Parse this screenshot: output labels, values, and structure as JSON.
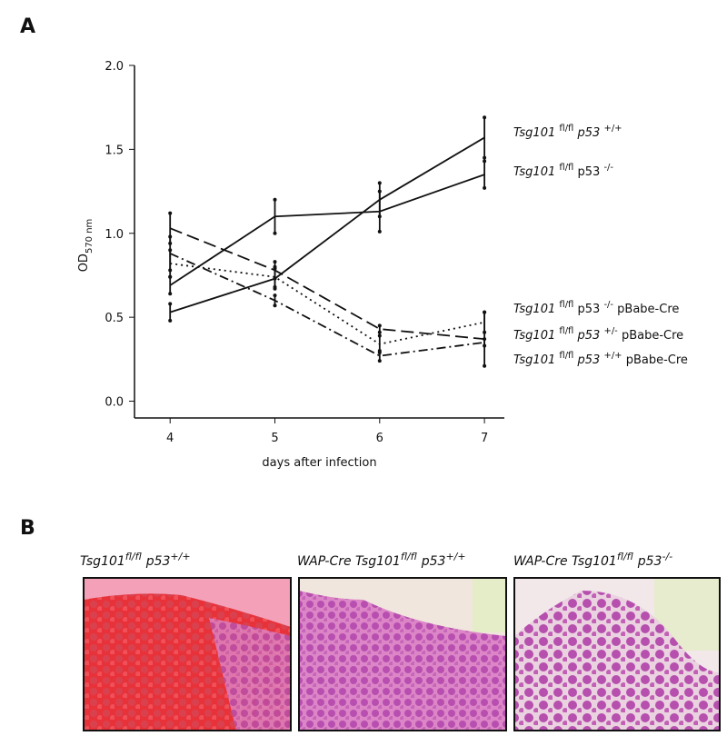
{
  "panel_a_label": "A",
  "panel_b_label": "B",
  "chart_data": {
    "type": "line",
    "y_label": "OD",
    "y_label_sub": "570 nm",
    "x_label": "days after infection",
    "x": [
      4,
      5,
      6,
      7
    ],
    "xlim": [
      3.66,
      7.19
    ],
    "xticks": [
      4,
      5,
      6,
      7
    ],
    "ylim": [
      -0.1,
      2.0
    ],
    "yticks": [
      {
        "value": 0,
        "label": "0.0"
      },
      {
        "value": 0.5,
        "label": "0.5"
      },
      {
        "value": 1,
        "label": "1.0"
      },
      {
        "value": 1.5,
        "label": "1.5"
      },
      {
        "value": 2,
        "label": "2.0"
      }
    ],
    "series": [
      {
        "name": "Tsg101 fl/fl p53 +/+",
        "color": "#111111",
        "dash": "solid",
        "values": [
          0.53,
          0.73,
          1.2,
          1.57
        ],
        "errors": [
          0.05,
          0.06,
          0.1,
          0.12
        ]
      },
      {
        "name": "Tsg101 fl/fl p53 -/-",
        "color": "#111111",
        "dash": "solid",
        "values": [
          0.69,
          1.1,
          1.13,
          1.35
        ],
        "errors": [
          0.05,
          0.1,
          0.12,
          0.08
        ]
      },
      {
        "name": "Tsg101 fl/fl p53 -/- pBabe-Cre",
        "color": "#111111",
        "dash": "long",
        "values": [
          1.03,
          0.78,
          0.43,
          0.37
        ],
        "errors": [
          0.09,
          0.05,
          0.02,
          0.16
        ]
      },
      {
        "name": "Tsg101 fl/fl p53 +/- pBabe-Cre",
        "color": "#111111",
        "dash": "dotted",
        "values": [
          0.82,
          0.74,
          0.34,
          0.47
        ],
        "errors": [
          0.08,
          0.06,
          0.05,
          0.06
        ]
      },
      {
        "name": "Tsg101 fl/fl p53 +/+ pBabe-Cre",
        "color": "#111111",
        "dash": "dashdot",
        "values": [
          0.88,
          0.6,
          0.27,
          0.35
        ],
        "errors": [
          0.1,
          0.03,
          0.03,
          0.02
        ]
      }
    ]
  },
  "images": [
    {
      "caption": [
        "Tsg101",
        "fl/fl",
        "p53",
        "+/+"
      ]
    },
    {
      "caption": [
        "WAP-Cre Tsg101",
        "fl/fl",
        "p53",
        "+/+"
      ]
    },
    {
      "caption": [
        "WAP-Cre Tsg101",
        "fl/fl",
        "p53",
        "-/-"
      ]
    }
  ]
}
